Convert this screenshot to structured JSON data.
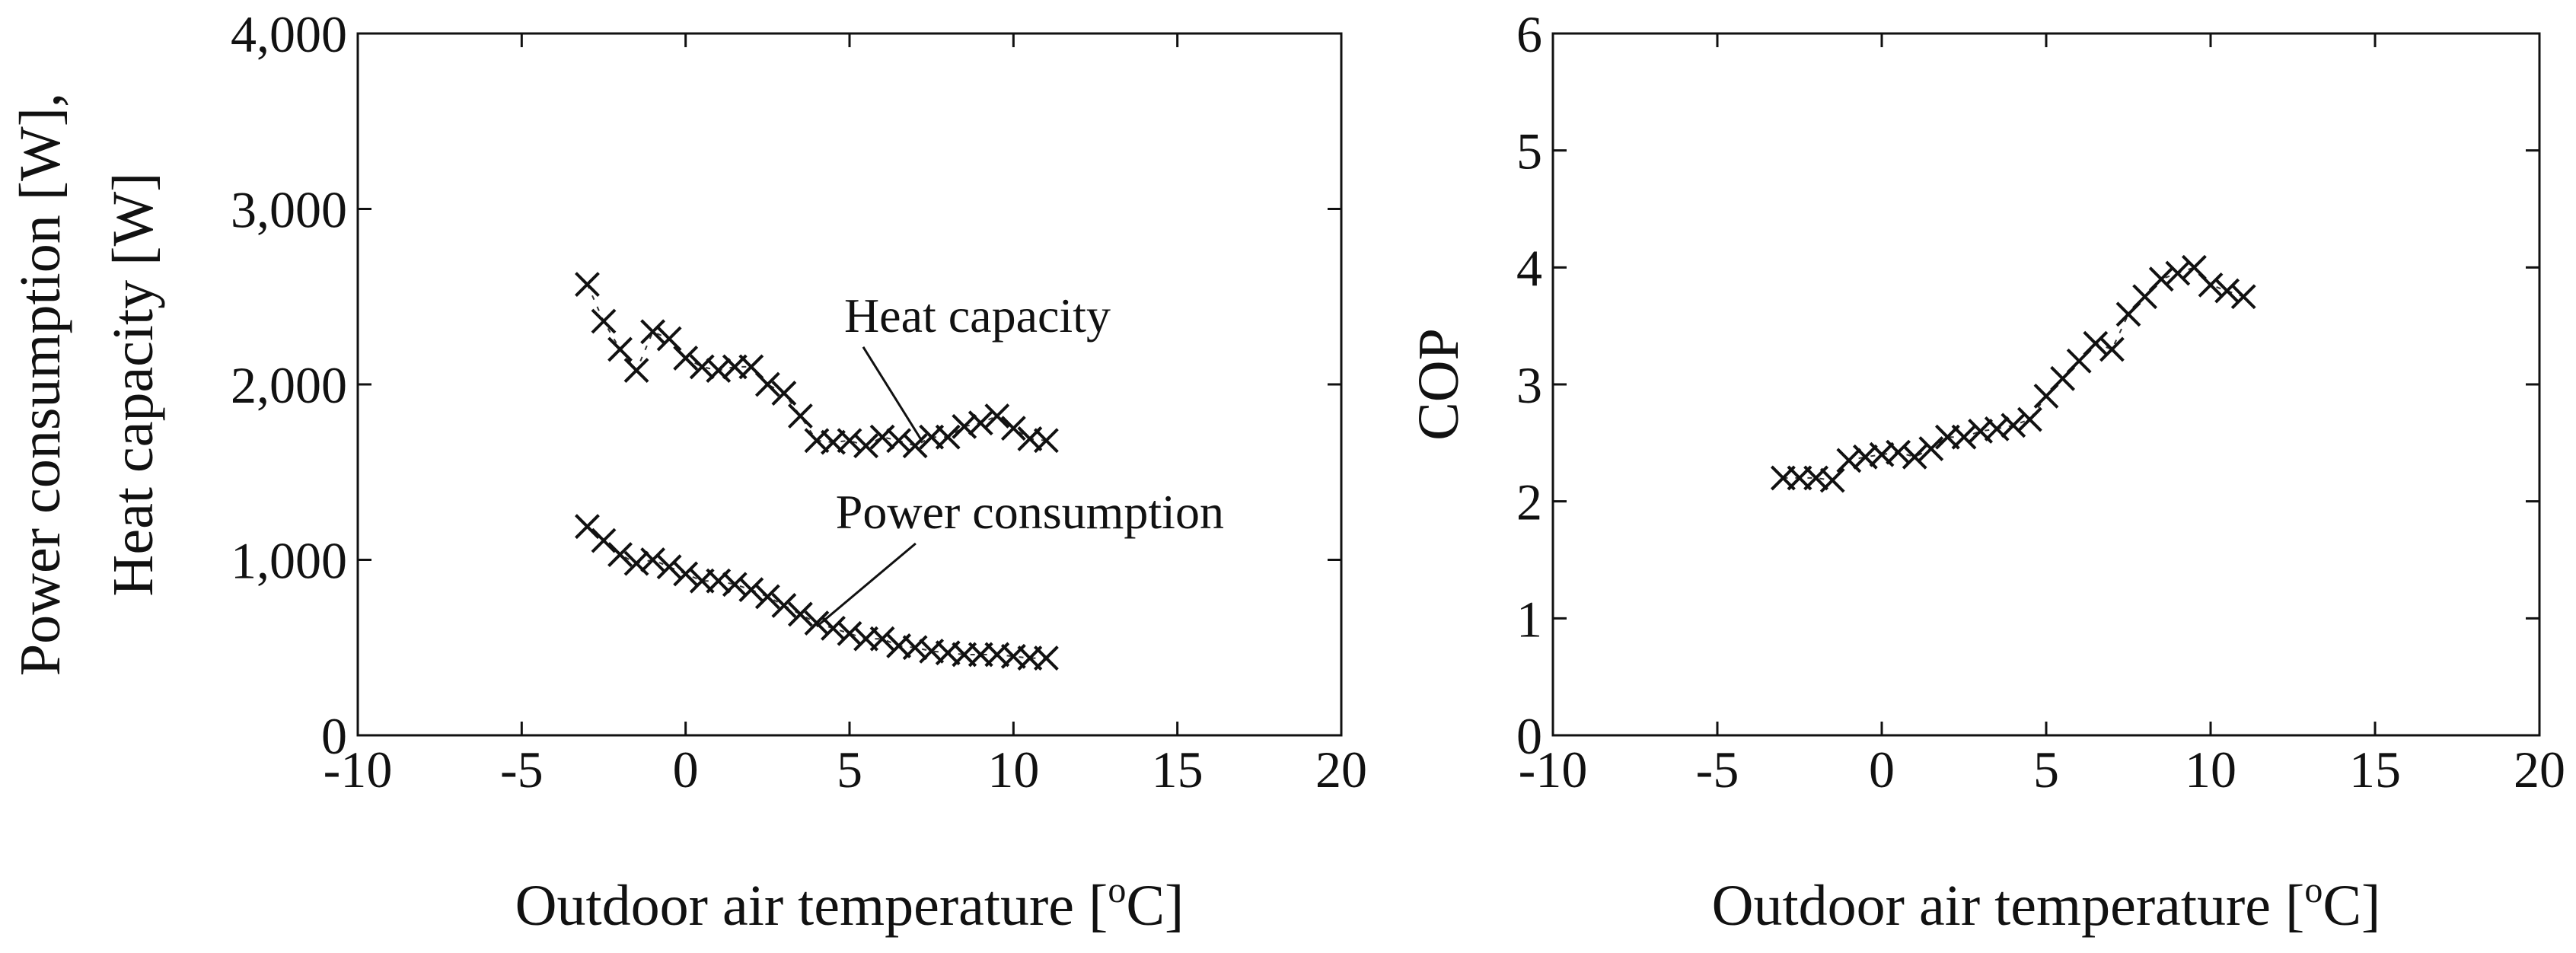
{
  "chart_data": [
    {
      "type": "scatter",
      "marker": "x",
      "xlabel": "Outdoor air temperature [",
      "xlabel_sup": "o",
      "xlabel_tail": "C]",
      "ylabel_line1": "Power consumption [W],",
      "ylabel_line2": "Heat capacity [W]",
      "xlim": [
        -10,
        20
      ],
      "ylim": [
        0,
        4000
      ],
      "xticks": [
        -10,
        -5,
        0,
        5,
        10,
        15,
        20
      ],
      "xtick_labels": [
        "-10",
        "-5",
        "0",
        "5",
        "10",
        "15",
        "20"
      ],
      "yticks": [
        0,
        1000,
        2000,
        3000,
        4000
      ],
      "ytick_labels": [
        "0",
        "1,000",
        "2,000",
        "3,000",
        "4,000"
      ],
      "series": [
        {
          "name": "Heat capacity",
          "x": [
            -3,
            -2.5,
            -2,
            -1.5,
            -1,
            -0.5,
            0,
            0.5,
            1,
            1.5,
            2,
            2.5,
            3,
            3.5,
            4,
            4.5,
            5,
            5.5,
            6,
            6.5,
            7,
            7.5,
            8,
            8.5,
            9,
            9.5,
            10,
            10.5,
            11
          ],
          "y": [
            2570,
            2360,
            2200,
            2080,
            2300,
            2260,
            2150,
            2100,
            2080,
            2100,
            2100,
            2000,
            1950,
            1820,
            1680,
            1670,
            1680,
            1650,
            1700,
            1680,
            1650,
            1700,
            1700,
            1760,
            1780,
            1820,
            1750,
            1690,
            1680
          ]
        },
        {
          "name": "Power consumption",
          "x": [
            -3,
            -2.5,
            -2,
            -1.5,
            -1,
            -0.5,
            0,
            0.5,
            1,
            1.5,
            2,
            2.5,
            3,
            3.5,
            4,
            4.5,
            5,
            5.5,
            6,
            6.5,
            7,
            7.5,
            8,
            8.5,
            9,
            9.5,
            10,
            10.5,
            11
          ],
          "y": [
            1190,
            1110,
            1030,
            980,
            1000,
            960,
            920,
            880,
            880,
            860,
            830,
            790,
            740,
            690,
            640,
            610,
            580,
            550,
            550,
            510,
            500,
            480,
            470,
            460,
            460,
            460,
            450,
            440,
            440
          ]
        }
      ],
      "annotations": [
        {
          "text": "Heat capacity",
          "x": 8.9,
          "y": 2300,
          "target_x": 7.2,
          "target_y": 1680
        },
        {
          "text": "Power consumption",
          "x": 10.5,
          "y": 1180,
          "target_x": 4.0,
          "target_y": 620
        }
      ]
    },
    {
      "type": "scatter",
      "marker": "x",
      "xlabel": "Outdoor air temperature [",
      "xlabel_sup": "o",
      "xlabel_tail": "C]",
      "ylabel": "COP",
      "xlim": [
        -10,
        20
      ],
      "ylim": [
        0,
        6
      ],
      "xticks": [
        -10,
        -5,
        0,
        5,
        10,
        15,
        20
      ],
      "xtick_labels": [
        "-10",
        "-5",
        "0",
        "5",
        "10",
        "15",
        "20"
      ],
      "yticks": [
        0,
        1,
        2,
        3,
        4,
        5,
        6
      ],
      "ytick_labels": [
        "0",
        "1",
        "2",
        "3",
        "4",
        "5",
        "6"
      ],
      "series": [
        {
          "name": "COP",
          "x": [
            -3,
            -2.5,
            -2,
            -1.5,
            -1,
            -0.5,
            0,
            0.5,
            1,
            1.5,
            2,
            2.5,
            3,
            3.5,
            4,
            4.5,
            5,
            5.5,
            6,
            6.5,
            7,
            7.5,
            8,
            8.5,
            9,
            9.5,
            10,
            10.5,
            11
          ],
          "y": [
            2.2,
            2.2,
            2.2,
            2.18,
            2.35,
            2.38,
            2.4,
            2.42,
            2.38,
            2.45,
            2.55,
            2.55,
            2.6,
            2.62,
            2.65,
            2.7,
            2.9,
            3.05,
            3.2,
            3.35,
            3.3,
            3.6,
            3.75,
            3.9,
            3.95,
            4.0,
            3.85,
            3.8,
            3.75
          ]
        }
      ],
      "annotations": []
    }
  ]
}
